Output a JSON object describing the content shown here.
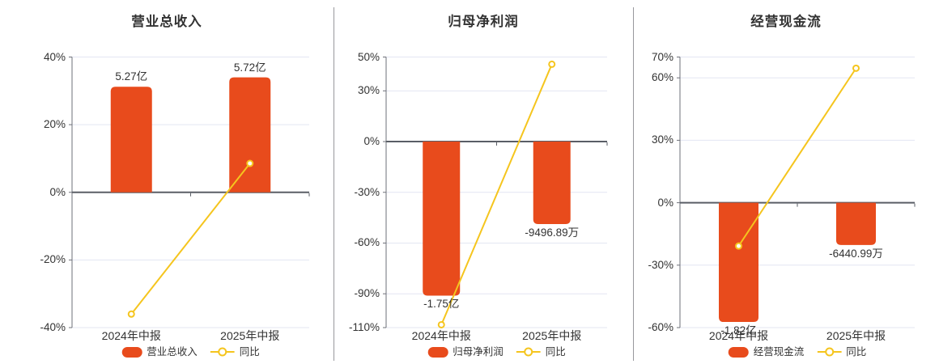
{
  "page": {
    "background": "#ffffff",
    "description_colors": {
      "bar": "#e84b1c",
      "line": "#f5c51e",
      "grid": "#e3e6f2",
      "zero_axis": "#5a5e66",
      "y_axis": "#6e7079",
      "divider": "#98989d",
      "text": "#333333",
      "marker_fill": "#ffffff"
    }
  },
  "chart_data": [
    {
      "type": "bar",
      "title": "营业总收入",
      "categories": [
        "2024年中报",
        "2025年中报"
      ],
      "bar_series": {
        "name": "营业总收入",
        "labels": [
          "5.27亿",
          "5.72亿"
        ],
        "plotted_pct": [
          31.2,
          34.0
        ],
        "label_position": "above"
      },
      "line_series": {
        "name": "同比",
        "values_pct": [
          -36.0,
          8.54
        ]
      },
      "yticks": [
        "40%",
        "20%",
        "0%",
        "-20%",
        "-40%"
      ],
      "ytick_values": [
        40,
        20,
        0,
        -20,
        -40
      ],
      "ylim": [
        -40,
        40
      ],
      "grid": true,
      "legend_position": "bottom"
    },
    {
      "type": "bar",
      "title": "归母净利润",
      "categories": [
        "2024年中报",
        "2025年中报"
      ],
      "bar_series": {
        "name": "归母净利润",
        "labels": [
          "-1.75亿",
          "-9496.89万"
        ],
        "plotted_pct": [
          -91.1,
          -48.8
        ],
        "label_position": "below"
      },
      "line_series": {
        "name": "同比",
        "values_pct": [
          -108.3,
          45.73
        ]
      },
      "yticks": [
        "50%",
        "30%",
        "0%",
        "-30%",
        "-60%",
        "-90%",
        "-110%"
      ],
      "ytick_values": [
        50,
        30,
        0,
        -30,
        -60,
        -90,
        -110
      ],
      "ylim": [
        -110,
        50
      ],
      "grid": true,
      "legend_position": "bottom"
    },
    {
      "type": "bar",
      "title": "经营现金流",
      "categories": [
        "2024年中报",
        "2025年中报"
      ],
      "bar_series": {
        "name": "经营现金流",
        "labels": [
          "-1.82亿",
          "-6440.99万"
        ],
        "plotted_pct": [
          -57.3,
          -20.3
        ],
        "label_position": "below"
      },
      "line_series": {
        "name": "同比",
        "values_pct": [
          -20.8,
          64.61
        ]
      },
      "yticks": [
        "70%",
        "60%",
        "30%",
        "0%",
        "-30%",
        "-60%"
      ],
      "ytick_values": [
        70,
        60,
        30,
        0,
        -30,
        -60
      ],
      "ylim": [
        -60,
        70
      ],
      "grid": true,
      "legend_position": "bottom"
    }
  ]
}
